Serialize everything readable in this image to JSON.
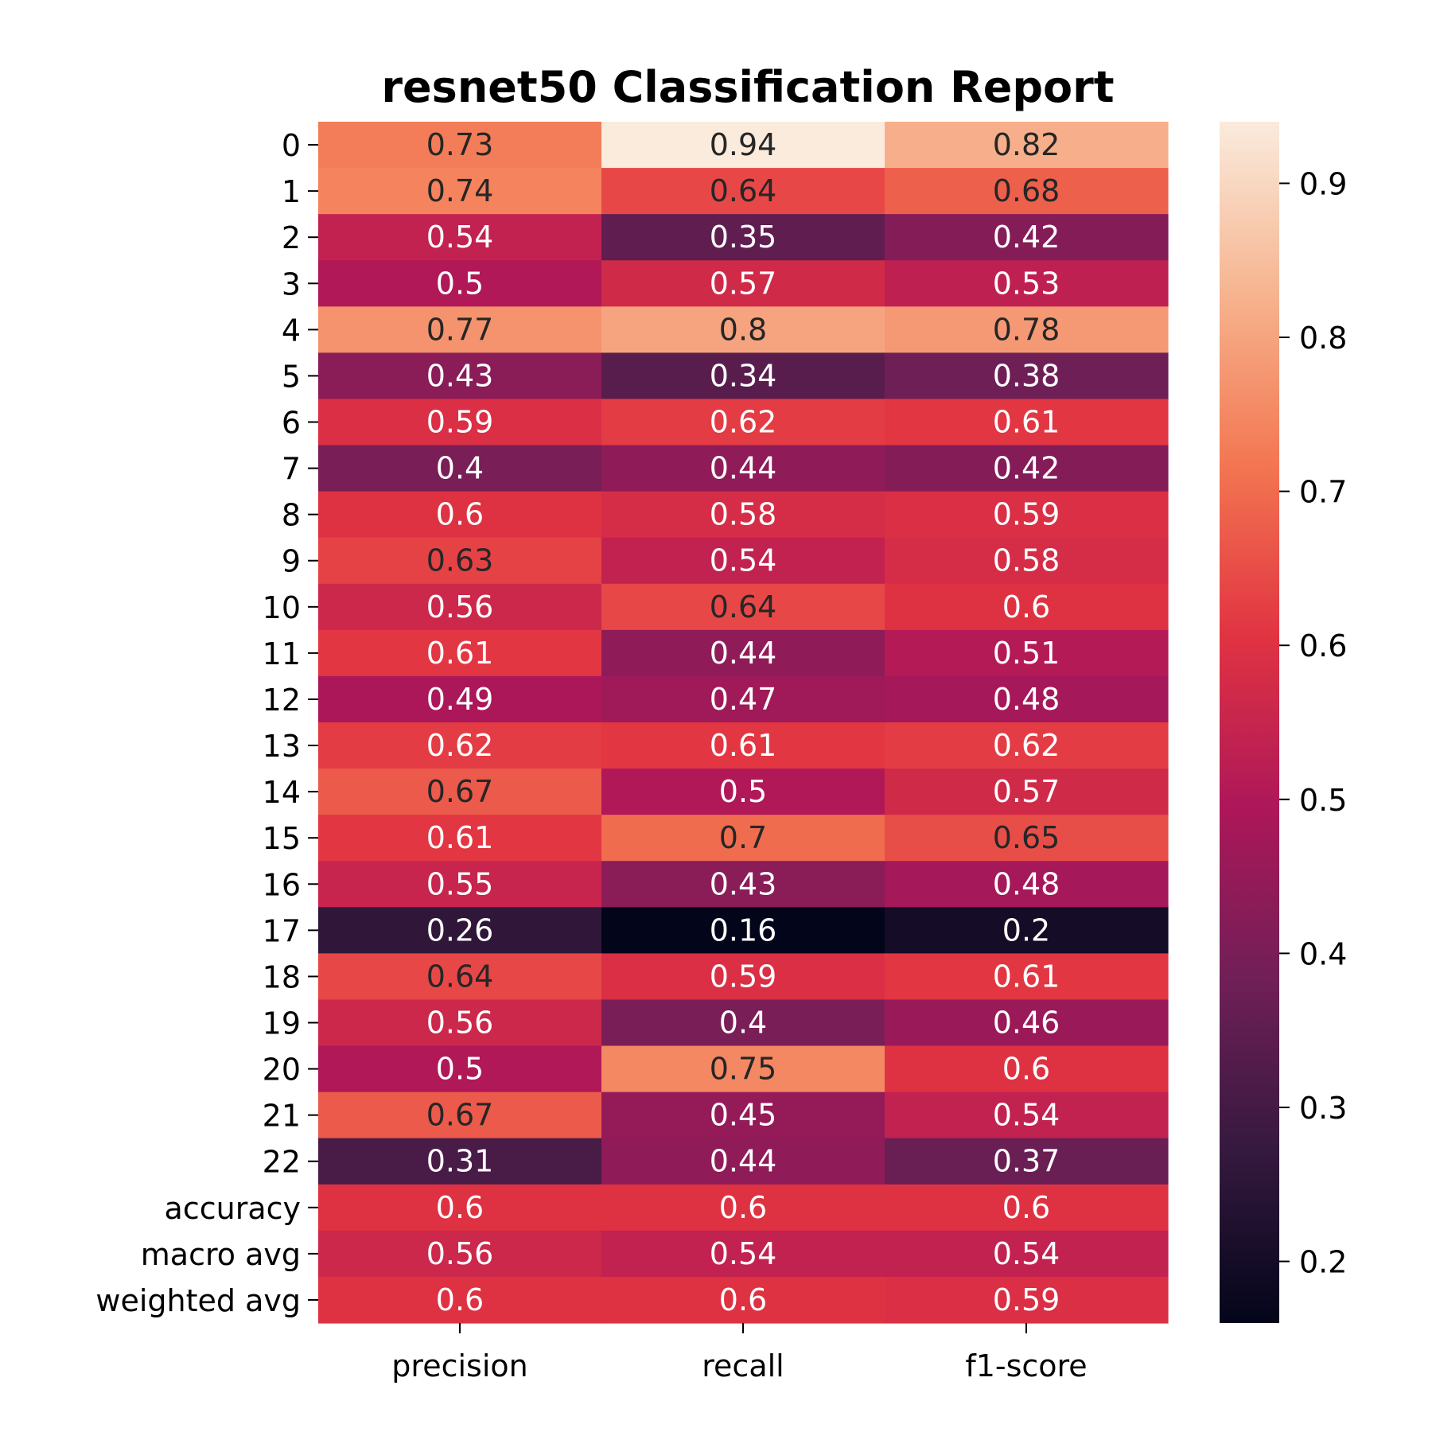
{
  "chart_data": {
    "type": "heatmap",
    "title": "resnet50 Classification Report",
    "columns": [
      "precision",
      "recall",
      "f1-score"
    ],
    "rows": [
      "0",
      "1",
      "2",
      "3",
      "4",
      "5",
      "6",
      "7",
      "8",
      "9",
      "10",
      "11",
      "12",
      "13",
      "14",
      "15",
      "16",
      "17",
      "18",
      "19",
      "20",
      "21",
      "22",
      "accuracy",
      "macro avg",
      "weighted avg"
    ],
    "values": [
      [
        0.73,
        0.94,
        0.82
      ],
      [
        0.74,
        0.64,
        0.68
      ],
      [
        0.54,
        0.35,
        0.42
      ],
      [
        0.5,
        0.57,
        0.53
      ],
      [
        0.77,
        0.8,
        0.78
      ],
      [
        0.43,
        0.34,
        0.38
      ],
      [
        0.59,
        0.62,
        0.61
      ],
      [
        0.4,
        0.44,
        0.42
      ],
      [
        0.6,
        0.58,
        0.59
      ],
      [
        0.63,
        0.54,
        0.58
      ],
      [
        0.56,
        0.64,
        0.6
      ],
      [
        0.61,
        0.44,
        0.51
      ],
      [
        0.49,
        0.47,
        0.48
      ],
      [
        0.62,
        0.61,
        0.62
      ],
      [
        0.67,
        0.5,
        0.57
      ],
      [
        0.61,
        0.7,
        0.65
      ],
      [
        0.55,
        0.43,
        0.48
      ],
      [
        0.26,
        0.16,
        0.2
      ],
      [
        0.64,
        0.59,
        0.61
      ],
      [
        0.56,
        0.4,
        0.46
      ],
      [
        0.5,
        0.75,
        0.6
      ],
      [
        0.67,
        0.45,
        0.54
      ],
      [
        0.31,
        0.44,
        0.37
      ],
      [
        0.6,
        0.6,
        0.6
      ],
      [
        0.56,
        0.54,
        0.54
      ],
      [
        0.6,
        0.6,
        0.59
      ]
    ],
    "colorbar": {
      "range": [
        0.16,
        0.94
      ],
      "ticks": [
        0.2,
        0.3,
        0.4,
        0.5,
        0.6,
        0.7,
        0.8,
        0.9
      ],
      "colormap": "rocket",
      "colormap_stops": [
        "#03051a",
        "#35193e",
        "#701f57",
        "#ad1759",
        "#e13342",
        "#f37651",
        "#f6b48f",
        "#faebdd"
      ]
    },
    "annotations": true,
    "grid": false,
    "legend": "colorbar-right"
  }
}
